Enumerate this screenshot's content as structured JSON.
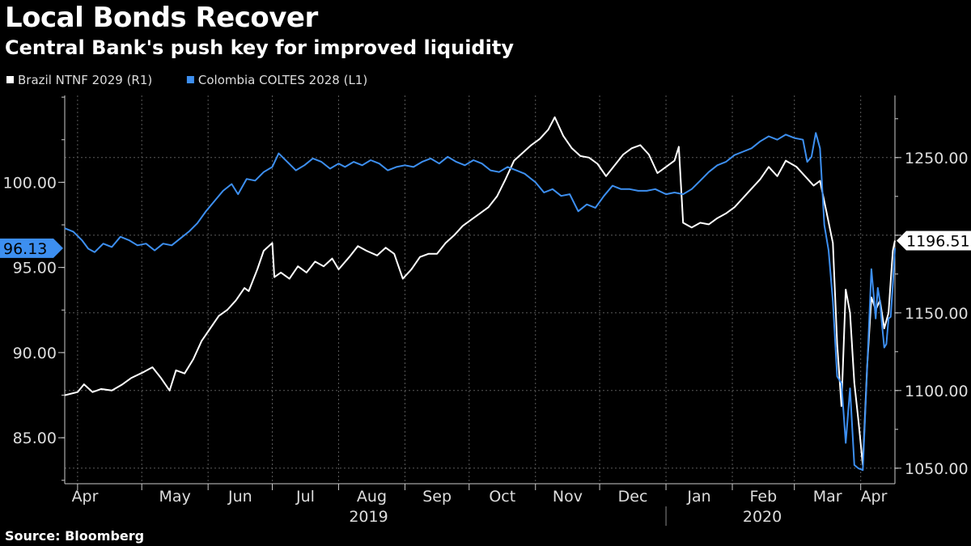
{
  "header": {
    "title": "Local Bonds Recover",
    "subtitle": "Central Bank's push key for improved liquidity",
    "source": "Source: Bloomberg"
  },
  "chart_data": {
    "type": "line",
    "x_range": [
      "2019-03-26",
      "2020-04-17"
    ],
    "left_axis": {
      "ticks": [
        85,
        90,
        95,
        100
      ],
      "tick_labels": [
        "85.00",
        "90.00",
        "95.00",
        "100.00"
      ],
      "range": [
        82.3,
        105.1
      ]
    },
    "right_axis": {
      "ticks": [
        1050,
        1100,
        1150,
        1200,
        1250
      ],
      "tick_labels": [
        "1050.00",
        "1100.00",
        "1150.00",
        "",
        "1250.00"
      ],
      "range": [
        1040,
        1290
      ]
    },
    "months": [
      {
        "label": "Apr",
        "date": "2019-04-01"
      },
      {
        "label": "May",
        "date": "2019-05-01"
      },
      {
        "label": "Jun",
        "date": "2019-06-01"
      },
      {
        "label": "Jul",
        "date": "2019-07-01"
      },
      {
        "label": "Aug",
        "date": "2019-08-01"
      },
      {
        "label": "Sep",
        "date": "2019-09-01"
      },
      {
        "label": "Oct",
        "date": "2019-10-01"
      },
      {
        "label": "Nov",
        "date": "2019-11-01"
      },
      {
        "label": "Dec",
        "date": "2019-12-01"
      },
      {
        "label": "Jan",
        "date": "2020-01-01"
      },
      {
        "label": "Feb",
        "date": "2020-02-01"
      },
      {
        "label": "Mar",
        "date": "2020-03-01"
      },
      {
        "label": "Apr",
        "date": "2020-04-01"
      }
    ],
    "years": [
      {
        "label": "2019",
        "center": "2019-08-15"
      },
      {
        "label": "2020",
        "center": "2020-02-15"
      }
    ],
    "year_divider": "2020-01-01",
    "grid": true,
    "legend_position": "top-left",
    "series": [
      {
        "name": "Brazil NTNF 2029 (R1)",
        "axis": "right",
        "color": "#ffffff",
        "last_label": "1196.51",
        "points": [
          [
            "2019-03-26",
            1097
          ],
          [
            "2019-04-01",
            1099
          ],
          [
            "2019-04-04",
            1104
          ],
          [
            "2019-04-08",
            1099
          ],
          [
            "2019-04-12",
            1101
          ],
          [
            "2019-04-17",
            1100
          ],
          [
            "2019-04-22",
            1104
          ],
          [
            "2019-04-26",
            1108
          ],
          [
            "2019-05-02",
            1112
          ],
          [
            "2019-05-06",
            1115
          ],
          [
            "2019-05-10",
            1108
          ],
          [
            "2019-05-14",
            1100
          ],
          [
            "2019-05-17",
            1113
          ],
          [
            "2019-05-21",
            1111
          ],
          [
            "2019-05-25",
            1120
          ],
          [
            "2019-05-29",
            1132
          ],
          [
            "2019-06-02",
            1140
          ],
          [
            "2019-06-06",
            1148
          ],
          [
            "2019-06-10",
            1152
          ],
          [
            "2019-06-14",
            1158
          ],
          [
            "2019-06-18",
            1166
          ],
          [
            "2019-06-20",
            1164
          ],
          [
            "2019-06-24",
            1178
          ],
          [
            "2019-06-27",
            1190
          ],
          [
            "2019-07-01",
            1195
          ],
          [
            "2019-07-02",
            1173
          ],
          [
            "2019-07-05",
            1176
          ],
          [
            "2019-07-09",
            1172
          ],
          [
            "2019-07-13",
            1180
          ],
          [
            "2019-07-17",
            1176
          ],
          [
            "2019-07-21",
            1183
          ],
          [
            "2019-07-25",
            1180
          ],
          [
            "2019-07-29",
            1185
          ],
          [
            "2019-08-01",
            1178
          ],
          [
            "2019-08-06",
            1186
          ],
          [
            "2019-08-10",
            1193
          ],
          [
            "2019-08-14",
            1190
          ],
          [
            "2019-08-19",
            1187
          ],
          [
            "2019-08-23",
            1192
          ],
          [
            "2019-08-27",
            1188
          ],
          [
            "2019-08-31",
            1172
          ],
          [
            "2019-09-04",
            1178
          ],
          [
            "2019-09-08",
            1186
          ],
          [
            "2019-09-12",
            1188
          ],
          [
            "2019-09-16",
            1188
          ],
          [
            "2019-09-20",
            1195
          ],
          [
            "2019-09-24",
            1200
          ],
          [
            "2019-09-28",
            1206
          ],
          [
            "2019-10-02",
            1210
          ],
          [
            "2019-10-06",
            1214
          ],
          [
            "2019-10-10",
            1218
          ],
          [
            "2019-10-14",
            1225
          ],
          [
            "2019-10-18",
            1236
          ],
          [
            "2019-10-22",
            1248
          ],
          [
            "2019-10-26",
            1253
          ],
          [
            "2019-10-30",
            1258
          ],
          [
            "2019-11-03",
            1262
          ],
          [
            "2019-11-07",
            1268
          ],
          [
            "2019-11-10",
            1276
          ],
          [
            "2019-11-14",
            1264
          ],
          [
            "2019-11-18",
            1256
          ],
          [
            "2019-11-22",
            1251
          ],
          [
            "2019-11-26",
            1250
          ],
          [
            "2019-11-30",
            1246
          ],
          [
            "2019-12-04",
            1238
          ],
          [
            "2019-12-08",
            1245
          ],
          [
            "2019-12-12",
            1252
          ],
          [
            "2019-12-16",
            1256
          ],
          [
            "2019-12-20",
            1258
          ],
          [
            "2019-12-24",
            1252
          ],
          [
            "2019-12-28",
            1240
          ],
          [
            "2020-01-01",
            1244
          ],
          [
            "2020-01-05",
            1248
          ],
          [
            "2020-01-07",
            1257
          ],
          [
            "2020-01-09",
            1208
          ],
          [
            "2020-01-13",
            1205
          ],
          [
            "2020-01-17",
            1208
          ],
          [
            "2020-01-21",
            1207
          ],
          [
            "2020-01-25",
            1211
          ],
          [
            "2020-01-29",
            1214
          ],
          [
            "2020-02-02",
            1218
          ],
          [
            "2020-02-06",
            1224
          ],
          [
            "2020-02-10",
            1230
          ],
          [
            "2020-02-14",
            1236
          ],
          [
            "2020-02-18",
            1244
          ],
          [
            "2020-02-22",
            1238
          ],
          [
            "2020-02-26",
            1248
          ],
          [
            "2020-03-02",
            1244
          ],
          [
            "2020-03-06",
            1238
          ],
          [
            "2020-03-10",
            1232
          ],
          [
            "2020-03-13",
            1235
          ],
          [
            "2020-03-16",
            1215
          ],
          [
            "2020-03-19",
            1195
          ],
          [
            "2020-03-21",
            1130
          ],
          [
            "2020-03-23",
            1090
          ],
          [
            "2020-03-25",
            1165
          ],
          [
            "2020-03-27",
            1150
          ],
          [
            "2020-03-29",
            1105
          ],
          [
            "2020-03-31",
            1080
          ],
          [
            "2020-04-02",
            1052
          ],
          [
            "2020-04-04",
            1115
          ],
          [
            "2020-04-06",
            1160
          ],
          [
            "2020-04-08",
            1152
          ],
          [
            "2020-04-10",
            1158
          ],
          [
            "2020-04-12",
            1140
          ],
          [
            "2020-04-14",
            1150
          ],
          [
            "2020-04-15",
            1170
          ],
          [
            "2020-04-16",
            1190
          ],
          [
            "2020-04-17",
            1196.51
          ]
        ]
      },
      {
        "name": "Colombia COLTES 2028 (L1)",
        "axis": "left",
        "color": "#3d8ff0",
        "last_label": "96.13",
        "points": [
          [
            "2019-03-26",
            97.3
          ],
          [
            "2019-03-30",
            97.1
          ],
          [
            "2019-04-03",
            96.6
          ],
          [
            "2019-04-06",
            96.1
          ],
          [
            "2019-04-09",
            95.9
          ],
          [
            "2019-04-13",
            96.4
          ],
          [
            "2019-04-17",
            96.2
          ],
          [
            "2019-04-21",
            96.8
          ],
          [
            "2019-04-25",
            96.6
          ],
          [
            "2019-04-29",
            96.3
          ],
          [
            "2019-05-03",
            96.4
          ],
          [
            "2019-05-07",
            96.0
          ],
          [
            "2019-05-11",
            96.4
          ],
          [
            "2019-05-15",
            96.3
          ],
          [
            "2019-05-19",
            96.7
          ],
          [
            "2019-05-23",
            97.1
          ],
          [
            "2019-05-27",
            97.6
          ],
          [
            "2019-05-31",
            98.3
          ],
          [
            "2019-06-04",
            98.9
          ],
          [
            "2019-06-08",
            99.5
          ],
          [
            "2019-06-12",
            99.9
          ],
          [
            "2019-06-15",
            99.3
          ],
          [
            "2019-06-19",
            100.2
          ],
          [
            "2019-06-23",
            100.1
          ],
          [
            "2019-06-27",
            100.6
          ],
          [
            "2019-07-01",
            100.9
          ],
          [
            "2019-07-04",
            101.7
          ],
          [
            "2019-07-08",
            101.2
          ],
          [
            "2019-07-12",
            100.7
          ],
          [
            "2019-07-16",
            101.0
          ],
          [
            "2019-07-20",
            101.4
          ],
          [
            "2019-07-24",
            101.2
          ],
          [
            "2019-07-28",
            100.8
          ],
          [
            "2019-08-01",
            101.1
          ],
          [
            "2019-08-04",
            100.9
          ],
          [
            "2019-08-08",
            101.2
          ],
          [
            "2019-08-12",
            101.0
          ],
          [
            "2019-08-16",
            101.3
          ],
          [
            "2019-08-20",
            101.1
          ],
          [
            "2019-08-24",
            100.7
          ],
          [
            "2019-08-28",
            100.9
          ],
          [
            "2019-09-01",
            101.0
          ],
          [
            "2019-09-05",
            100.9
          ],
          [
            "2019-09-09",
            101.2
          ],
          [
            "2019-09-13",
            101.4
          ],
          [
            "2019-09-17",
            101.1
          ],
          [
            "2019-09-21",
            101.5
          ],
          [
            "2019-09-25",
            101.2
          ],
          [
            "2019-09-29",
            101.0
          ],
          [
            "2019-10-03",
            101.3
          ],
          [
            "2019-10-07",
            101.1
          ],
          [
            "2019-10-11",
            100.7
          ],
          [
            "2019-10-15",
            100.6
          ],
          [
            "2019-10-19",
            100.9
          ],
          [
            "2019-10-23",
            100.7
          ],
          [
            "2019-10-27",
            100.5
          ],
          [
            "2019-11-01",
            100.0
          ],
          [
            "2019-11-05",
            99.4
          ],
          [
            "2019-11-09",
            99.6
          ],
          [
            "2019-11-13",
            99.2
          ],
          [
            "2019-11-17",
            99.3
          ],
          [
            "2019-11-21",
            98.3
          ],
          [
            "2019-11-25",
            98.7
          ],
          [
            "2019-11-29",
            98.5
          ],
          [
            "2019-12-03",
            99.2
          ],
          [
            "2019-12-07",
            99.8
          ],
          [
            "2019-12-11",
            99.6
          ],
          [
            "2019-12-15",
            99.6
          ],
          [
            "2019-12-19",
            99.5
          ],
          [
            "2019-12-23",
            99.5
          ],
          [
            "2019-12-27",
            99.6
          ],
          [
            "2020-01-01",
            99.3
          ],
          [
            "2020-01-05",
            99.4
          ],
          [
            "2020-01-09",
            99.3
          ],
          [
            "2020-01-13",
            99.6
          ],
          [
            "2020-01-17",
            100.1
          ],
          [
            "2020-01-21",
            100.6
          ],
          [
            "2020-01-25",
            101.0
          ],
          [
            "2020-01-29",
            101.2
          ],
          [
            "2020-02-02",
            101.6
          ],
          [
            "2020-02-06",
            101.8
          ],
          [
            "2020-02-10",
            102.0
          ],
          [
            "2020-02-14",
            102.4
          ],
          [
            "2020-02-18",
            102.7
          ],
          [
            "2020-02-22",
            102.5
          ],
          [
            "2020-02-26",
            102.8
          ],
          [
            "2020-03-01",
            102.6
          ],
          [
            "2020-03-05",
            102.5
          ],
          [
            "2020-03-07",
            101.2
          ],
          [
            "2020-03-09",
            101.5
          ],
          [
            "2020-03-11",
            102.9
          ],
          [
            "2020-03-13",
            102.0
          ],
          [
            "2020-03-15",
            97.5
          ],
          [
            "2020-03-17",
            96.0
          ],
          [
            "2020-03-19",
            93.0
          ],
          [
            "2020-03-21",
            88.6
          ],
          [
            "2020-03-23",
            88.2
          ],
          [
            "2020-03-25",
            84.7
          ],
          [
            "2020-03-27",
            87.9
          ],
          [
            "2020-03-29",
            83.4
          ],
          [
            "2020-03-31",
            83.2
          ],
          [
            "2020-04-02",
            83.1
          ],
          [
            "2020-04-04",
            89.0
          ],
          [
            "2020-04-06",
            94.9
          ],
          [
            "2020-04-08",
            92.0
          ],
          [
            "2020-04-09",
            93.8
          ],
          [
            "2020-04-10",
            93.0
          ],
          [
            "2020-04-11",
            91.6
          ],
          [
            "2020-04-12",
            90.3
          ],
          [
            "2020-04-13",
            90.5
          ],
          [
            "2020-04-14",
            92.0
          ],
          [
            "2020-04-15",
            92.1
          ],
          [
            "2020-04-16",
            94.0
          ],
          [
            "2020-04-17",
            96.13
          ]
        ]
      }
    ]
  }
}
